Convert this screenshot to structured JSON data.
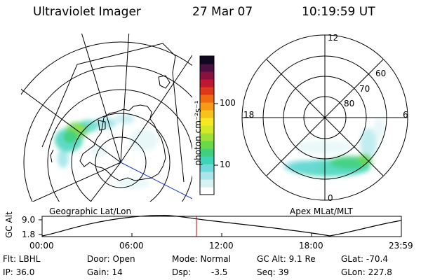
{
  "header": {
    "instrument": "Ultraviolet Imager",
    "date": "27 Mar 07",
    "time": "10:19:59 UT"
  },
  "colorbar": {
    "unit_label": "photon cm⁻²s⁻¹",
    "ticks": [
      "100",
      "10"
    ],
    "colors": [
      "#ffffff",
      "#d8f2f4",
      "#a8e6ea",
      "#6fd9dc",
      "#3fd3b8",
      "#40d080",
      "#6ad84a",
      "#9ee03a",
      "#d2e829",
      "#f3ea24",
      "#f7c21c",
      "#f79a14",
      "#ef6a10",
      "#e0381a",
      "#c01830",
      "#8a1040",
      "#4a1040",
      "#100820"
    ],
    "tick_values": [
      100,
      10
    ],
    "scale": "log"
  },
  "geographic_panel": {
    "label": "Geographic Lat/Lon"
  },
  "apex_panel": {
    "label": "Apex MLat/MLT",
    "mlt_labels": [
      "12",
      "18",
      "6",
      "0"
    ],
    "mlat_labels": [
      "60",
      "70",
      "80"
    ]
  },
  "altitude_plot": {
    "ylabel": "GC Alt",
    "y_ticks": [
      "9.0",
      "1.8"
    ],
    "x_ticks": [
      "00:00",
      "06:00",
      "12:00",
      "18:00",
      "23:59"
    ],
    "current_time_marker": "10:19:59"
  },
  "info": {
    "flt": "Flt: LBHL",
    "door": "Door: Open",
    "mode": "Mode: Normal",
    "gc_alt": "GC Alt: 9.1 Re",
    "glat": "GLat: -70.4",
    "ip": "IP: 36.0",
    "gain": "Gain: 14",
    "dsp_label": "Dsp:",
    "dsp_value": "-3.5",
    "seq": "Seq: 39",
    "glon": "GLon: 227.8"
  },
  "colors": {
    "marker": "#c80000",
    "projection_line": "#1a3cc8"
  }
}
